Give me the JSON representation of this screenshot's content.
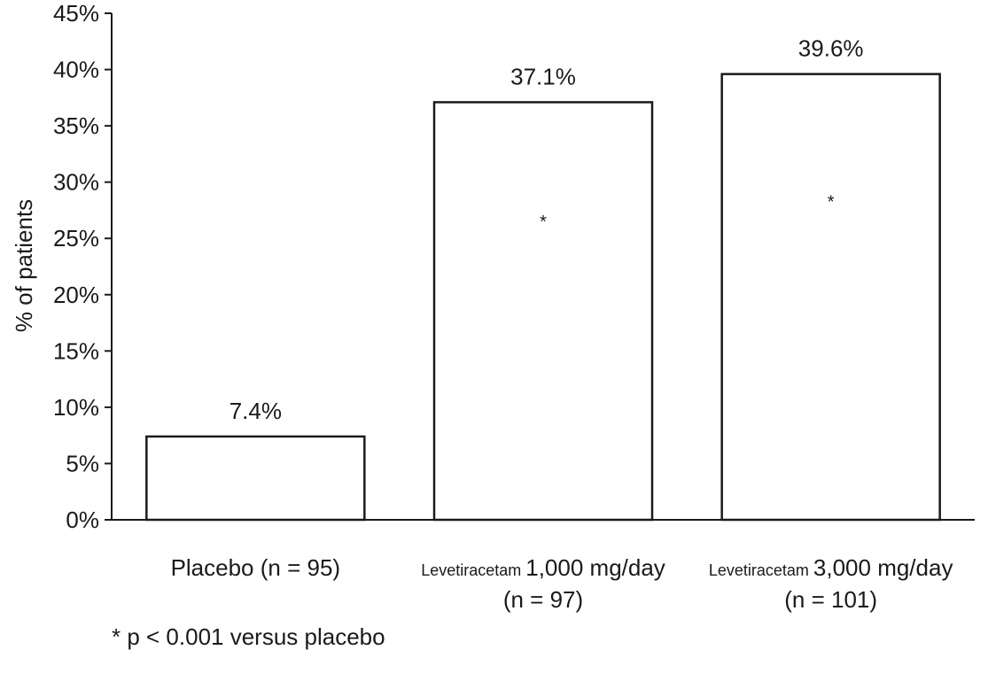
{
  "chart_data": {
    "type": "bar",
    "categories": [
      {
        "prefix": "",
        "main": "Placebo (n = 95)",
        "line2": ""
      },
      {
        "prefix": "Levetiracetam ",
        "main": "1,000 mg/day",
        "line2": "(n = 97)"
      },
      {
        "prefix": "Levetiracetam ",
        "main": "3,000 mg/day",
        "line2": "(n = 101)"
      }
    ],
    "values": [
      7.4,
      37.1,
      39.6
    ],
    "data_labels": [
      "7.4%",
      "37.1%",
      "39.6%"
    ],
    "significance_markers": [
      "",
      "*",
      "*"
    ],
    "ylabel": "% of patients",
    "xlabel": "",
    "title": "",
    "ylim": [
      0,
      45
    ],
    "yticks": [
      0,
      5,
      10,
      15,
      20,
      25,
      30,
      35,
      40,
      45
    ],
    "ytick_labels": [
      "0%",
      "5%",
      "10%",
      "15%",
      "20%",
      "25%",
      "30%",
      "35%",
      "40%",
      "45%"
    ],
    "grid": false,
    "legend": "none",
    "footnote": "* p < 0.001 versus placebo",
    "colors": {
      "bar_fill": "#ffffff",
      "bar_stroke": "#1a1a1a",
      "text": "#1a1a1a"
    }
  }
}
